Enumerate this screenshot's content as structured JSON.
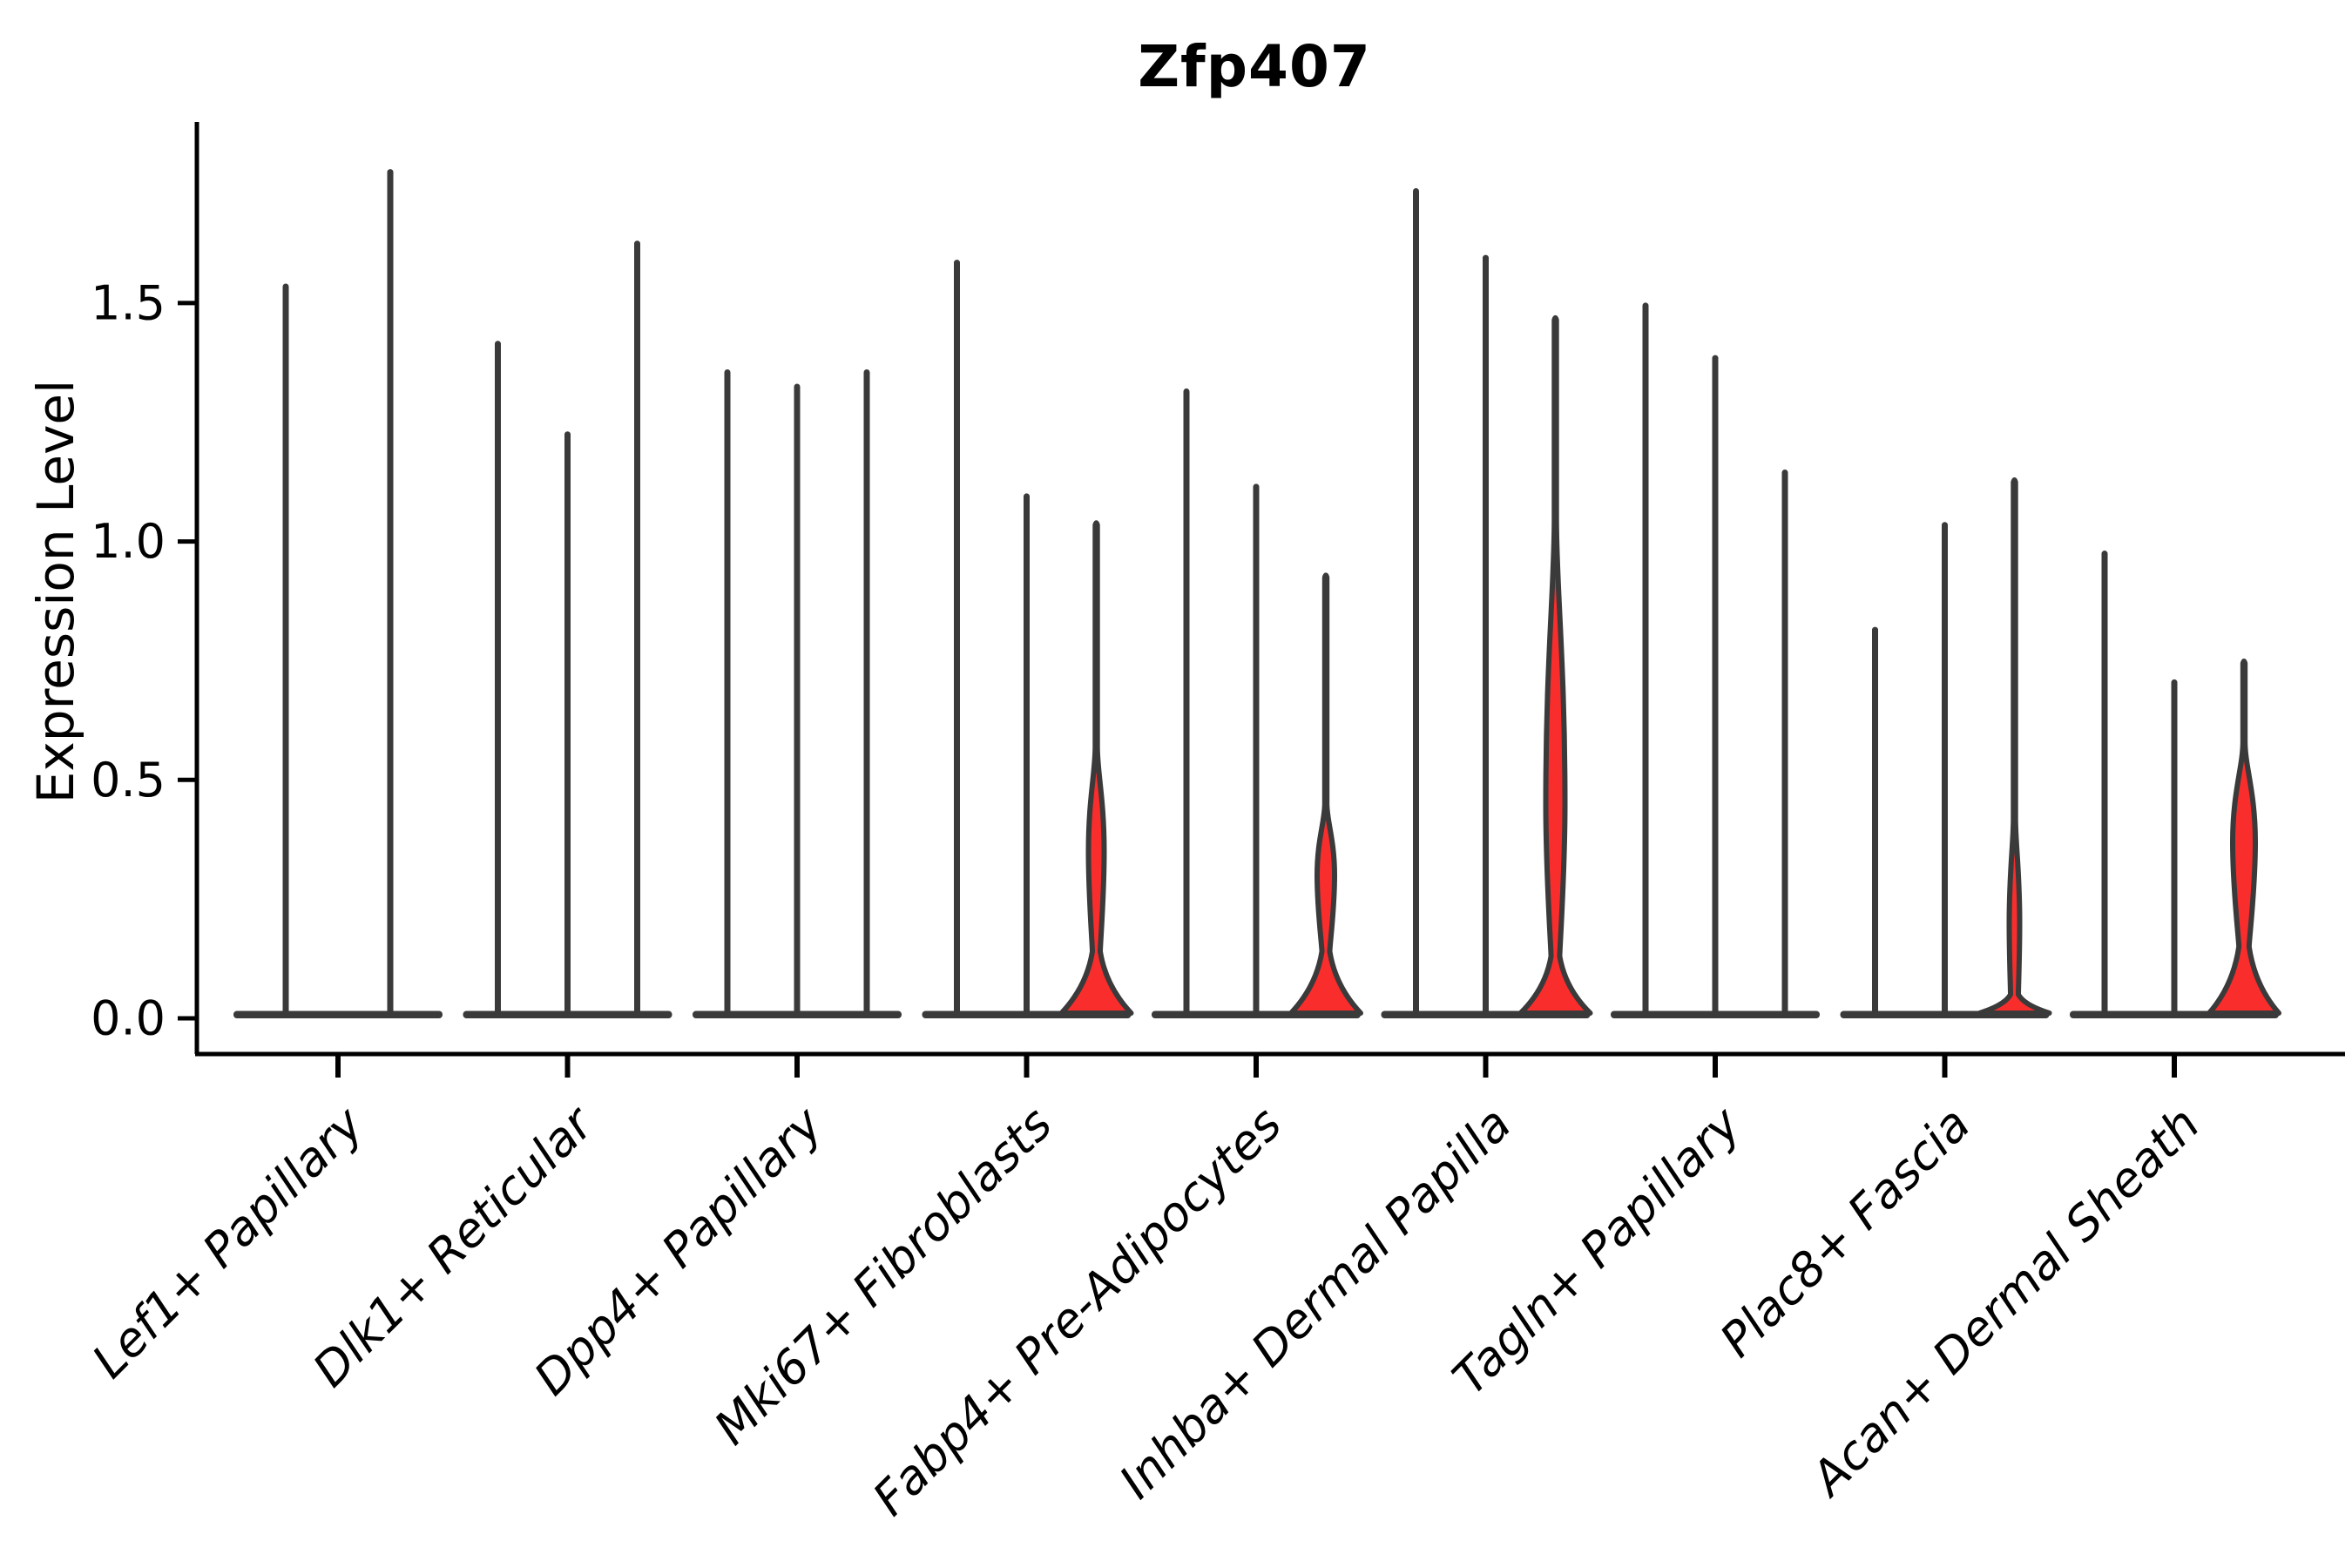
{
  "page": {
    "background": "#ffffff"
  },
  "chart_data": {
    "type": "violin",
    "title": "Zfp407",
    "ylabel": "Expression Level",
    "xlabel": "",
    "ylim": [
      -0.08,
      1.88
    ],
    "yticks": [
      0.0,
      0.5,
      1.0,
      1.5
    ],
    "ytick_labels": [
      "0.0",
      "0.5",
      "1.0",
      "1.5"
    ],
    "grid": false,
    "legend": "none",
    "colors": {
      "violin_fill_red": "#FA2D2D",
      "violin_outline": "#3A3A3A",
      "axis": "#000000",
      "text": "#000000",
      "background": "#ffffff"
    },
    "categories": [
      "Lef1+ Papillary",
      "Dlk1+ Reticular",
      "Dpp4+ Papillary",
      "Mki67+ Fibroblasts",
      "Fabp4+ Pre-Adipocytes",
      "Inhba+ Dermal Papilla",
      "Tagln+ Papillary",
      "Plac8+ Fascia",
      "Acan+ Dermal Sheath"
    ],
    "groups": [
      {
        "category": "Lef1+ Papillary",
        "violins": [
          {
            "max": 1.54,
            "red": false
          },
          {
            "max": 1.78,
            "red": false
          }
        ]
      },
      {
        "category": "Dlk1+ Reticular",
        "violins": [
          {
            "max": 1.42,
            "red": false
          },
          {
            "max": 1.23,
            "red": false
          },
          {
            "max": 1.63,
            "red": false
          }
        ]
      },
      {
        "category": "Dpp4+ Papillary",
        "violins": [
          {
            "max": 1.36,
            "red": false
          },
          {
            "max": 1.33,
            "red": false
          },
          {
            "max": 1.36,
            "red": false
          }
        ]
      },
      {
        "category": "Mki67+ Fibroblasts",
        "violins": [
          {
            "max": 1.59,
            "red": false
          },
          {
            "max": 1.1,
            "red": false
          },
          {
            "max": 1.04,
            "red": true,
            "bulge": 0.14,
            "lens_lo": 0.17,
            "lens_peak": 0.35,
            "lens_hi": 0.57,
            "lens_hw": 9
          }
        ]
      },
      {
        "category": "Fabp4+ Pre-Adipocytes",
        "violins": [
          {
            "max": 1.32,
            "red": false
          },
          {
            "max": 1.12,
            "red": false
          },
          {
            "max": 0.93,
            "red": true,
            "bulge": 0.14,
            "lens_lo": 0.16,
            "lens_peak": 0.3,
            "lens_hi": 0.45,
            "lens_hw": 10
          }
        ]
      },
      {
        "category": "Inhba+ Dermal Papilla",
        "violins": [
          {
            "max": 1.74,
            "red": false
          },
          {
            "max": 1.6,
            "red": false
          },
          {
            "max": 1.47,
            "red": true,
            "bulge": 0.13,
            "lens_lo": 0.2,
            "lens_peak": 0.45,
            "lens_hi": 1.05,
            "lens_hw": 11
          }
        ]
      },
      {
        "category": "Tagln+ Papillary",
        "violins": [
          {
            "max": 1.5,
            "red": false
          },
          {
            "max": 1.39,
            "red": false
          },
          {
            "max": 1.15,
            "red": false
          }
        ]
      },
      {
        "category": "Plac8+ Fascia",
        "violins": [
          {
            "max": 0.82,
            "red": false
          },
          {
            "max": 1.04,
            "red": false
          },
          {
            "max": 1.13,
            "red": true,
            "bulge": 0.05,
            "lens_lo": 0.07,
            "lens_peak": 0.2,
            "lens_hi": 0.42,
            "lens_hw": 6
          }
        ]
      },
      {
        "category": "Acan+ Dermal Sheath",
        "violins": [
          {
            "max": 0.98,
            "red": false
          },
          {
            "max": 0.71,
            "red": false
          },
          {
            "max": 0.75,
            "red": true,
            "bulge": 0.15,
            "lens_lo": 0.2,
            "lens_peak": 0.37,
            "lens_hi": 0.58,
            "lens_hw": 13
          }
        ]
      }
    ]
  }
}
